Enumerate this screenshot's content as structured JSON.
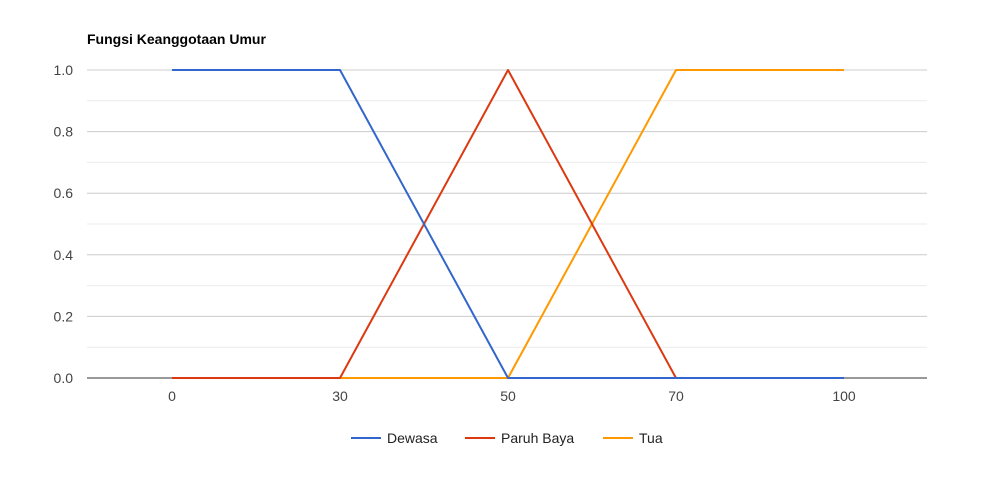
{
  "chart_data": {
    "type": "line",
    "title": "Fungsi Keanggotaan Umur",
    "xlabel": "",
    "ylabel": "",
    "x": [
      0,
      30,
      50,
      70,
      100
    ],
    "x_tick_labels": [
      "0",
      "30",
      "50",
      "70",
      "100"
    ],
    "y_ticks": [
      0.0,
      0.2,
      0.4,
      0.6,
      0.8,
      1.0
    ],
    "y_tick_labels": [
      "0.0",
      "0.2",
      "0.4",
      "0.6",
      "0.8",
      "1.0"
    ],
    "ylim": [
      0,
      1
    ],
    "x_axis": "categorical",
    "grid": true,
    "legend_position": "bottom",
    "series": [
      {
        "name": "Dewasa",
        "color": "#3366cc",
        "values": [
          1,
          1,
          0,
          0,
          0
        ]
      },
      {
        "name": "Paruh Baya",
        "color": "#dc3912",
        "values": [
          0,
          0,
          1,
          0,
          0
        ]
      },
      {
        "name": "Tua",
        "color": "#ff9900",
        "values": [
          0,
          0,
          0,
          1,
          1
        ]
      }
    ]
  }
}
